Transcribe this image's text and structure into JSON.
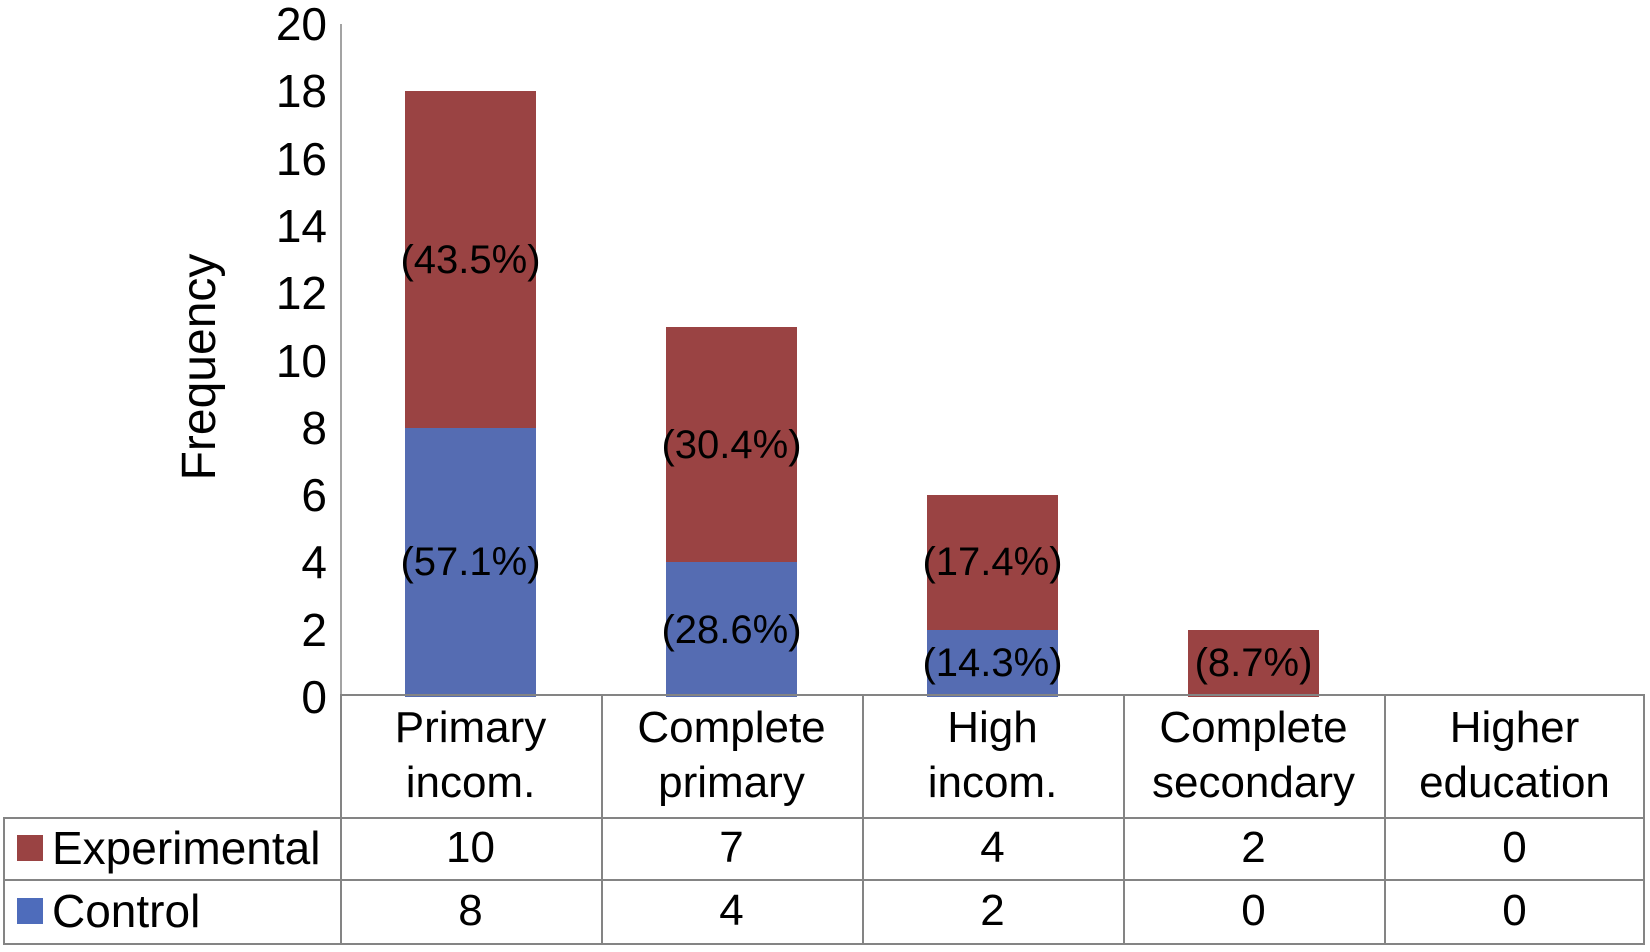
{
  "chart_data": {
    "type": "bar",
    "stacked": true,
    "title": "",
    "xlabel": "",
    "ylabel": "Frequency",
    "ylim": [
      0,
      20
    ],
    "ytick_step": 2,
    "ytick_labels": [
      "0",
      "2",
      "4",
      "6",
      "8",
      "10",
      "12",
      "14",
      "16",
      "18",
      "20"
    ],
    "grid": false,
    "legend_position": "table-rows-left",
    "data_table": true,
    "categories": [
      "Primary incom.",
      "Complete primary",
      "High incom.",
      "Complete secondary",
      "Higher education"
    ],
    "category_lines": [
      [
        "Primary",
        "incom."
      ],
      [
        "Complete",
        "primary"
      ],
      [
        "High",
        "incom."
      ],
      [
        "Complete",
        "secondary"
      ],
      [
        "Higher",
        "education"
      ]
    ],
    "stack_order": [
      "Control",
      "Experimental"
    ],
    "series": [
      {
        "name": "Experimental",
        "color": "#9A4343",
        "legend_color": "#9A4343",
        "values": [
          10,
          7,
          4,
          2,
          0
        ],
        "segment_labels": [
          "(43.5%)",
          "(30.4%)",
          "(17.4%)",
          "(8.7%)",
          ""
        ]
      },
      {
        "name": "Control",
        "color": "#556CB2",
        "legend_color": "#4E6CBB",
        "values": [
          8,
          4,
          2,
          0,
          0
        ],
        "segment_labels": [
          "(57.1%)",
          "(28.6%)",
          "(14.3%)",
          "",
          ""
        ]
      }
    ],
    "table_rows": [
      {
        "label": "Experimental",
        "cells": [
          "10",
          "7",
          "4",
          "2",
          "0"
        ]
      },
      {
        "label": "Control",
        "cells": [
          "8",
          "4",
          "2",
          "0",
          "0"
        ]
      }
    ]
  },
  "colors": {
    "background": "#FFFFFF",
    "axis_line": "#A3A3A3",
    "table_border": "#848484",
    "text": "#000000",
    "experimental": "#9A4343",
    "control": "#556CB2"
  }
}
